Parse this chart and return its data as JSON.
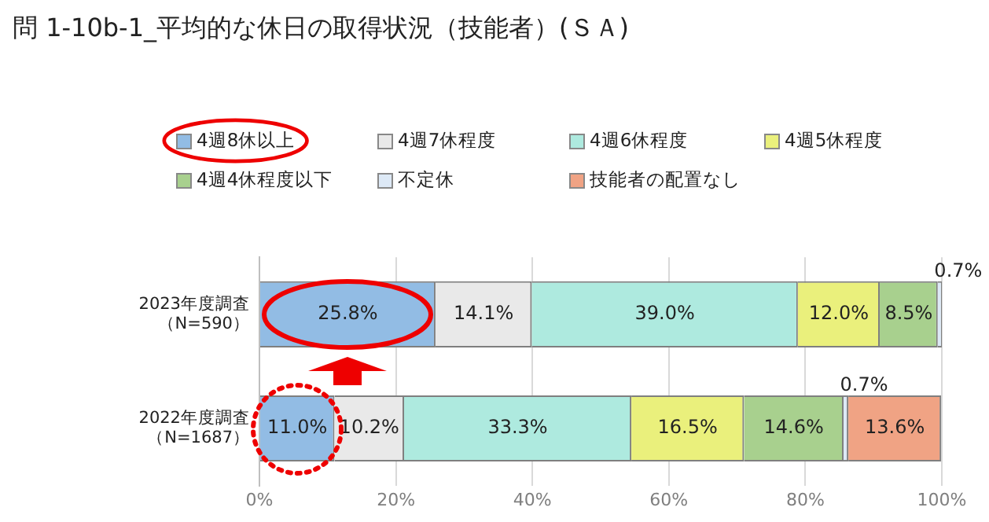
{
  "chart_data": {
    "type": "bar",
    "orientation": "horizontal",
    "stacked": true,
    "title": "問 1-10b-1_平均的な休日の取得状況（技能者）(ＳＡ)",
    "categories": [
      "2023年度調査（N=590）",
      "2022年度調査（N=1687）"
    ],
    "series": [
      {
        "name": "4週8休以上",
        "color": "#92bce4",
        "values": [
          25.8,
          11.0
        ],
        "value_labels": [
          "25.8%",
          "11.0%"
        ]
      },
      {
        "name": "4週7休程度",
        "color": "#e9e9e9",
        "values": [
          14.1,
          10.2
        ],
        "value_labels": [
          "14.1%",
          "10.2%"
        ]
      },
      {
        "name": "4週6休程度",
        "color": "#aeeadf",
        "values": [
          39.0,
          33.3
        ],
        "value_labels": [
          "39.0%",
          "33.3%"
        ]
      },
      {
        "name": "4週5休程度",
        "color": "#eaf07c",
        "values": [
          12.0,
          16.5
        ],
        "value_labels": [
          "12.0%",
          "16.5%"
        ]
      },
      {
        "name": "4週4休程度以下",
        "color": "#a8d08e",
        "values": [
          8.5,
          14.6
        ],
        "value_labels": [
          "8.5%",
          "14.6%"
        ]
      },
      {
        "name": "不定休",
        "color": "#dde9f6",
        "values": [
          0.7,
          0.7
        ],
        "value_labels": [
          "0.7%",
          "0.7%"
        ]
      },
      {
        "name": "技能者の配置なし",
        "color": "#f0a384",
        "values": [
          null,
          13.6
        ],
        "value_labels": [
          null,
          "13.6%"
        ]
      }
    ],
    "xlim": [
      0,
      100
    ],
    "xticks": [
      {
        "value": 0,
        "label": "0%"
      },
      {
        "value": 20,
        "label": "20%"
      },
      {
        "value": 40,
        "label": "40%"
      },
      {
        "value": 60,
        "label": "60%"
      },
      {
        "value": 80,
        "label": "80%"
      },
      {
        "value": 100,
        "label": "100%"
      }
    ],
    "grid": "x",
    "legend": "top"
  }
}
